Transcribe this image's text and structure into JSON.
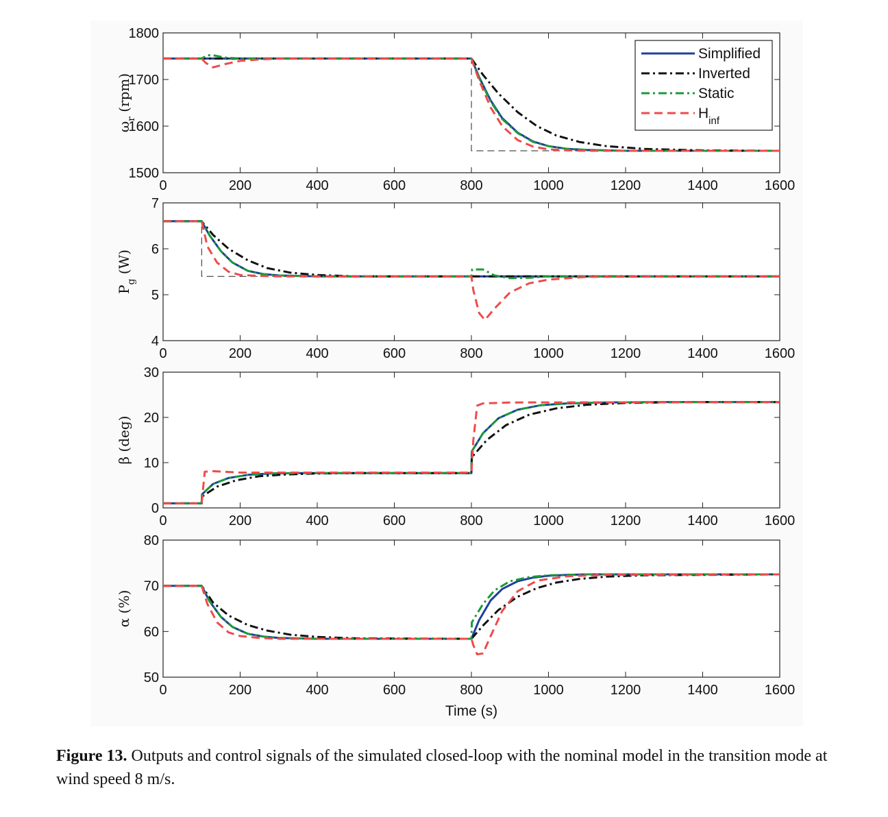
{
  "figure": {
    "caption_label": "Figure 13.",
    "caption_text": "Outputs and control signals of the simulated closed-loop with the nominal model in the transition mode at wind speed 8 m/s."
  },
  "legend": [
    {
      "name": "Simplified",
      "color": "#1f3f9a",
      "dash": "solid"
    },
    {
      "name": "Inverted",
      "color": "#111111",
      "dash": "dashdot"
    },
    {
      "name": "Static",
      "color": "#1a9a3a",
      "dash": "dashdot"
    },
    {
      "name": "H",
      "sub": "inf",
      "color": "#ef4a4a",
      "dash": "dashed"
    }
  ],
  "chart_data": [
    {
      "type": "line",
      "ylabel": "ω",
      "ylabel_sub": "r",
      "ylabel_unit": " (rpm)",
      "xlabel": "",
      "xlim": [
        0,
        1600
      ],
      "ylim": [
        1500,
        1800
      ],
      "xticks": [
        0,
        200,
        400,
        600,
        800,
        1000,
        1200,
        1400,
        1600
      ],
      "yticks": [
        1500,
        1600,
        1700,
        1800
      ],
      "reference": [
        [
          0,
          1745
        ],
        [
          800,
          1745
        ],
        [
          800,
          1547
        ],
        [
          1600,
          1547
        ]
      ],
      "series": [
        {
          "name": "Simplified",
          "x": [
            0,
            100,
            800,
            820,
            850,
            880,
            920,
            960,
            1000,
            1050,
            1100,
            1200,
            1300,
            1600
          ],
          "y": [
            1745,
            1745,
            1745,
            1705,
            1655,
            1617,
            1586,
            1567,
            1557,
            1551,
            1549,
            1547,
            1547,
            1547
          ]
        },
        {
          "name": "Inverted",
          "x": [
            0,
            100,
            800,
            830,
            870,
            920,
            970,
            1020,
            1080,
            1150,
            1250,
            1400,
            1600
          ],
          "y": [
            1745,
            1745,
            1745,
            1710,
            1670,
            1630,
            1600,
            1580,
            1566,
            1557,
            1551,
            1548,
            1547
          ]
        },
        {
          "name": "Static",
          "x": [
            0,
            100,
            115,
            130,
            160,
            200,
            800,
            820,
            850,
            880,
            920,
            960,
            1000,
            1050,
            1100,
            1200,
            1600
          ],
          "y": [
            1745,
            1745,
            1752,
            1752,
            1747,
            1745,
            1745,
            1703,
            1653,
            1615,
            1585,
            1566,
            1557,
            1551,
            1549,
            1547,
            1547
          ]
        },
        {
          "name": "H",
          "x": [
            0,
            100,
            110,
            130,
            160,
            200,
            250,
            300,
            800,
            820,
            850,
            880,
            920,
            960,
            1000,
            1050,
            1100,
            1200,
            1600
          ],
          "y": [
            1745,
            1745,
            1736,
            1726,
            1733,
            1740,
            1743,
            1745,
            1745,
            1698,
            1640,
            1600,
            1570,
            1556,
            1550,
            1548,
            1547,
            1547,
            1547
          ]
        }
      ]
    },
    {
      "type": "line",
      "ylabel": "P",
      "ylabel_sub": "g",
      "ylabel_unit": " (W)",
      "xlabel": "",
      "xlim": [
        0,
        1600
      ],
      "ylim": [
        4,
        7
      ],
      "xticks": [
        0,
        200,
        400,
        600,
        800,
        1000,
        1200,
        1400,
        1600
      ],
      "yticks": [
        4,
        5,
        6,
        7
      ],
      "reference": [
        [
          0,
          6.6
        ],
        [
          100,
          6.6
        ],
        [
          100,
          5.4
        ],
        [
          1600,
          5.4
        ]
      ],
      "series": [
        {
          "name": "Simplified",
          "x": [
            0,
            100,
            120,
            150,
            180,
            220,
            260,
            300,
            400,
            800,
            1600
          ],
          "y": [
            6.6,
            6.6,
            6.3,
            5.95,
            5.7,
            5.52,
            5.45,
            5.42,
            5.4,
            5.4,
            5.4
          ]
        },
        {
          "name": "Inverted",
          "x": [
            0,
            100,
            130,
            170,
            220,
            270,
            330,
            400,
            500,
            800,
            1600
          ],
          "y": [
            6.6,
            6.6,
            6.3,
            6.0,
            5.75,
            5.58,
            5.48,
            5.43,
            5.4,
            5.4,
            5.4
          ]
        },
        {
          "name": "Static",
          "x": [
            0,
            100,
            120,
            150,
            180,
            220,
            260,
            300,
            400,
            800,
            802,
            830,
            860,
            900,
            950,
            1000,
            1600
          ],
          "y": [
            6.6,
            6.6,
            6.3,
            5.95,
            5.7,
            5.52,
            5.45,
            5.42,
            5.4,
            5.4,
            5.55,
            5.55,
            5.42,
            5.36,
            5.37,
            5.4,
            5.4
          ]
        },
        {
          "name": "H",
          "x": [
            0,
            100,
            115,
            140,
            170,
            200,
            250,
            300,
            800,
            805,
            820,
            835,
            860,
            900,
            950,
            1000,
            1100,
            1600
          ],
          "y": [
            6.6,
            6.6,
            6.05,
            5.7,
            5.5,
            5.43,
            5.41,
            5.4,
            5.4,
            5.1,
            4.6,
            4.45,
            4.7,
            5.05,
            5.25,
            5.33,
            5.39,
            5.4
          ]
        }
      ]
    },
    {
      "type": "line",
      "ylabel": "β",
      "ylabel_sub": "",
      "ylabel_unit": " (deg)",
      "xlabel": "",
      "xlim": [
        0,
        1600
      ],
      "ylim": [
        0,
        30
      ],
      "xticks": [
        0,
        200,
        400,
        600,
        800,
        1000,
        1200,
        1400,
        1600
      ],
      "yticks": [
        0,
        10,
        20,
        30
      ],
      "series": [
        {
          "name": "Simplified",
          "x": [
            0,
            100,
            101,
            130,
            170,
            220,
            280,
            350,
            800,
            801,
            830,
            870,
            920,
            980,
            1050,
            1150,
            1300,
            1600
          ],
          "y": [
            1,
            1,
            3,
            5.3,
            6.6,
            7.3,
            7.6,
            7.7,
            7.7,
            12.5,
            16.5,
            19.8,
            21.7,
            22.7,
            23.1,
            23.3,
            23.4,
            23.4
          ]
        },
        {
          "name": "Inverted",
          "x": [
            0,
            100,
            101,
            140,
            190,
            250,
            320,
            400,
            500,
            800,
            801,
            840,
            890,
            950,
            1020,
            1100,
            1200,
            1350,
            1600
          ],
          "y": [
            1,
            1,
            2.5,
            4.7,
            6.1,
            7.0,
            7.4,
            7.6,
            7.7,
            7.7,
            11.2,
            15,
            18.3,
            20.6,
            22,
            22.8,
            23.2,
            23.4,
            23.4
          ]
        },
        {
          "name": "Static",
          "x": [
            0,
            100,
            101,
            130,
            170,
            220,
            280,
            350,
            800,
            801,
            830,
            870,
            920,
            980,
            1050,
            1150,
            1300,
            1600
          ],
          "y": [
            1,
            1,
            3,
            5.3,
            6.6,
            7.3,
            7.6,
            7.7,
            7.7,
            12.5,
            16.5,
            19.8,
            21.7,
            22.7,
            23.1,
            23.3,
            23.4,
            23.4
          ]
        },
        {
          "name": "H",
          "x": [
            0,
            100,
            108,
            130,
            200,
            800,
            805,
            815,
            830,
            900,
            1600
          ],
          "y": [
            1,
            1,
            8,
            8.1,
            7.8,
            7.8,
            15,
            22.6,
            23.1,
            23.3,
            23.4
          ]
        }
      ]
    },
    {
      "type": "line",
      "ylabel": "α",
      "ylabel_sub": "",
      "ylabel_unit": " (%)",
      "xlabel": "Time (s)",
      "xlim": [
        0,
        1600
      ],
      "ylim": [
        50,
        80
      ],
      "xticks": [
        0,
        200,
        400,
        600,
        800,
        1000,
        1200,
        1400,
        1600
      ],
      "yticks": [
        50,
        60,
        70,
        80
      ],
      "series": [
        {
          "name": "Simplified",
          "x": [
            0,
            100,
            120,
            150,
            180,
            220,
            260,
            300,
            400,
            800,
            820,
            850,
            880,
            920,
            960,
            1000,
            1050,
            1100,
            1200,
            1600
          ],
          "y": [
            70,
            70,
            66.7,
            63.2,
            61.0,
            59.5,
            58.9,
            58.6,
            58.4,
            58.4,
            62.5,
            66.8,
            69.3,
            71,
            71.8,
            72.2,
            72.4,
            72.5,
            72.5,
            72.5
          ]
        },
        {
          "name": "Inverted",
          "x": [
            0,
            100,
            130,
            170,
            220,
            270,
            330,
            400,
            500,
            800,
            830,
            870,
            920,
            970,
            1020,
            1080,
            1150,
            1250,
            1600
          ],
          "y": [
            70,
            70,
            66.3,
            63.5,
            61.4,
            60.2,
            59.3,
            58.8,
            58.5,
            58.4,
            61.3,
            64.7,
            67.6,
            69.5,
            70.7,
            71.5,
            72.0,
            72.3,
            72.5
          ]
        },
        {
          "name": "Static",
          "x": [
            0,
            100,
            120,
            150,
            180,
            220,
            260,
            300,
            400,
            800,
            801,
            830,
            860,
            900,
            950,
            1000,
            1100,
            1600
          ],
          "y": [
            70,
            70,
            66.7,
            63.2,
            61.0,
            59.5,
            58.9,
            58.6,
            58.4,
            58.4,
            62,
            66,
            69,
            71,
            71.9,
            72.3,
            72.5,
            72.5
          ]
        },
        {
          "name": "H",
          "x": [
            0,
            100,
            115,
            140,
            170,
            200,
            250,
            300,
            800,
            805,
            815,
            830,
            850,
            880,
            920,
            970,
            1050,
            1150,
            1600
          ],
          "y": [
            70,
            70,
            66,
            62,
            59.8,
            59,
            58.6,
            58.4,
            58.4,
            57,
            55,
            55.2,
            59,
            64.5,
            68.8,
            71.1,
            72.1,
            72.4,
            72.5
          ]
        }
      ]
    }
  ]
}
